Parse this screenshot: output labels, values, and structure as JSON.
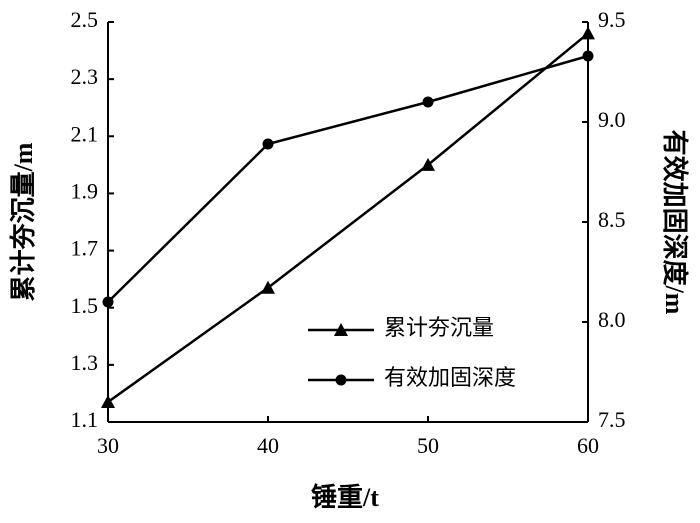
{
  "chart_data": {
    "type": "line",
    "x_label": "锤重/t",
    "y_label": "累计夯沉量/m",
    "y2_label": "有效加固深度/m",
    "x": [
      30,
      40,
      50,
      60
    ],
    "xlim": [
      30,
      60
    ],
    "xticks": [
      30,
      40,
      50,
      60
    ],
    "ylim": [
      1.1,
      2.5
    ],
    "yticks": [
      1.1,
      1.3,
      1.5,
      1.7,
      1.9,
      2.1,
      2.3,
      2.5
    ],
    "y2lim": [
      7.5,
      9.5
    ],
    "y2ticks": [
      7.5,
      {
        "value": 8.0,
        "label": "8.0"
      },
      8.5,
      {
        "value": 9.0,
        "label": "9.0"
      },
      9.5
    ],
    "grid": false,
    "legend": "lower right",
    "series": [
      {
        "name": "累计夯沉量",
        "color": "#000000",
        "marker": "triangle",
        "values": [
          1.17,
          1.57,
          2.0,
          2.46
        ]
      },
      {
        "name": "有效加固深度",
        "color": "#000000",
        "marker": "circle",
        "axis": "y2",
        "values": [
          8.1,
          8.89,
          9.1,
          9.33
        ]
      }
    ]
  }
}
